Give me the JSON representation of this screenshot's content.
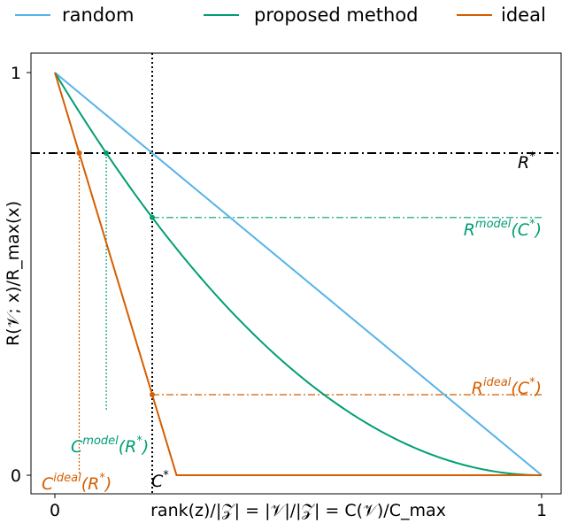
{
  "chart_data": {
    "type": "line",
    "xlabel": "rank(z)/|𝒵| = |𝒱|/|𝒵| = C(𝒱)/C_max",
    "ylabel": "R(𝒱; x)/R_max(x)",
    "xlim": [
      0,
      1
    ],
    "ylim": [
      0,
      1
    ],
    "xticks": [
      "0",
      "1"
    ],
    "yticks": [
      "0",
      "1"
    ],
    "grid": false,
    "legend": {
      "position": "top",
      "entries": [
        {
          "label": "random",
          "color": "#56b4e9"
        },
        {
          "label": "proposed method",
          "color": "#009e73"
        },
        {
          "label": "ideal",
          "color": "#d55e00"
        }
      ]
    },
    "series": [
      {
        "name": "random",
        "color": "#56b4e9",
        "x": [
          0,
          1
        ],
        "y": [
          1,
          0
        ]
      },
      {
        "name": "proposed method",
        "color": "#009e73",
        "x": [
          0,
          0.1,
          0.2,
          0.3,
          0.4,
          0.5,
          0.6,
          0.7,
          0.8,
          0.9,
          1.0
        ],
        "y": [
          1.0,
          0.81,
          0.64,
          0.49,
          0.36,
          0.25,
          0.16,
          0.09,
          0.04,
          0.01,
          0
        ]
      },
      {
        "name": "ideal",
        "color": "#d55e00",
        "x": [
          0,
          0.25,
          1
        ],
        "y": [
          1,
          0,
          0
        ]
      }
    ],
    "reference_lines": {
      "R_star": 0.8,
      "C_star": 0.2,
      "R_model_C_star": 0.64,
      "R_ideal_C_star": 0.2,
      "C_model_R_star": 0.1056,
      "C_ideal_R_star": 0.05
    },
    "annotations": {
      "r_star": {
        "base": "R",
        "sup": "*"
      },
      "c_star": {
        "base": "C",
        "sup": "*"
      },
      "r_model": {
        "base": "R",
        "sup": "model",
        "arg": "(C",
        "argsup": "*",
        "close": ")"
      },
      "r_ideal": {
        "base": "R",
        "sup": "ideal",
        "arg": "(C",
        "argsup": "*",
        "close": ")"
      },
      "c_model": {
        "base": "C",
        "sup": "model",
        "arg": "(R",
        "argsup": "*",
        "close": ")"
      },
      "c_ideal": {
        "base": "C",
        "sup": "ideal",
        "arg": "(R",
        "argsup": "*",
        "close": ")"
      }
    }
  }
}
